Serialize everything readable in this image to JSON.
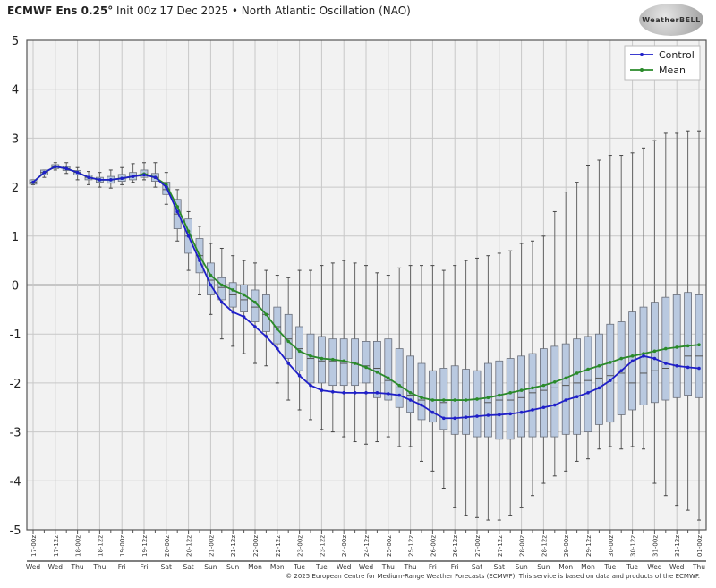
{
  "header": {
    "title_bold": "ECMWF Ens 0.25°",
    "title_rest": " Init 00z 17 Dec 2025 • North Atlantic Oscillation (NAO)"
  },
  "logo": {
    "text": "WeatherBELL"
  },
  "footer": {
    "text": "© 2025 European Centre for Medium-Range Weather Forecasts (ECMWF). This service is based on data and products of the ECMWF."
  },
  "chart_data": {
    "type": "box+line",
    "title": "North Atlantic Oscillation (NAO)",
    "ylim": [
      -5,
      5
    ],
    "yticks": [
      5,
      4,
      3,
      2,
      1,
      0,
      -1,
      -2,
      -3,
      -4,
      -5
    ],
    "grid": true,
    "legend_position": "top-right",
    "step_hours": 6,
    "xtick_labels": [
      "17-00z",
      "17-12z",
      "18-00z",
      "18-12z",
      "19-00z",
      "19-12z",
      "20-00z",
      "20-12z",
      "21-00z",
      "21-12z",
      "22-00z",
      "22-12z",
      "23-00z",
      "23-12z",
      "24-00z",
      "24-12z",
      "25-00z",
      "25-12z",
      "26-00z",
      "26-12z",
      "27-00z",
      "27-12z",
      "28-00z",
      "28-12z",
      "29-00z",
      "29-12z",
      "30-00z",
      "30-12z",
      "31-00z",
      "31-12z",
      "01-00z"
    ],
    "xtick_days": [
      "Wed",
      "Wed",
      "Thu",
      "Thu",
      "Fri",
      "Fri",
      "Sat",
      "Sat",
      "Sun",
      "Sun",
      "Mon",
      "Mon",
      "Tue",
      "Tue",
      "Wed",
      "Wed",
      "Thu",
      "Thu",
      "Fri",
      "Fri",
      "Sat",
      "Sat",
      "Sun",
      "Sun",
      "Mon",
      "Mon",
      "Tue",
      "Tue",
      "Wed",
      "Wed",
      "Thu"
    ],
    "series": [
      {
        "name": "Control",
        "color": "#1f1fc8",
        "values": [
          2.1,
          2.3,
          2.42,
          2.38,
          2.3,
          2.2,
          2.15,
          2.15,
          2.18,
          2.22,
          2.25,
          2.2,
          2.0,
          1.5,
          1.0,
          0.5,
          0.0,
          -0.35,
          -0.55,
          -0.65,
          -0.85,
          -1.05,
          -1.3,
          -1.6,
          -1.85,
          -2.05,
          -2.15,
          -2.18,
          -2.2,
          -2.2,
          -2.2,
          -2.2,
          -2.22,
          -2.25,
          -2.35,
          -2.45,
          -2.6,
          -2.72,
          -2.72,
          -2.7,
          -2.68,
          -2.66,
          -2.65,
          -2.63,
          -2.6,
          -2.55,
          -2.5,
          -2.45,
          -2.35,
          -2.28,
          -2.2,
          -2.1,
          -1.95,
          -1.75,
          -1.55,
          -1.45,
          -1.5,
          -1.6,
          -1.65,
          -1.68,
          -1.7
        ]
      },
      {
        "name": "Mean",
        "color": "#2a8a2a",
        "values": [
          2.1,
          2.3,
          2.42,
          2.38,
          2.3,
          2.2,
          2.15,
          2.15,
          2.18,
          2.22,
          2.27,
          2.2,
          2.05,
          1.6,
          1.1,
          0.6,
          0.2,
          0.0,
          -0.1,
          -0.2,
          -0.35,
          -0.6,
          -0.9,
          -1.15,
          -1.35,
          -1.45,
          -1.5,
          -1.52,
          -1.55,
          -1.6,
          -1.68,
          -1.78,
          -1.9,
          -2.05,
          -2.2,
          -2.3,
          -2.35,
          -2.35,
          -2.35,
          -2.35,
          -2.33,
          -2.3,
          -2.25,
          -2.2,
          -2.15,
          -2.1,
          -2.05,
          -1.98,
          -1.9,
          -1.8,
          -1.72,
          -1.65,
          -1.58,
          -1.5,
          -1.45,
          -1.4,
          -1.35,
          -1.3,
          -1.27,
          -1.24,
          -1.22
        ]
      }
    ],
    "boxes": {
      "max": [
        2.15,
        2.35,
        2.5,
        2.5,
        2.4,
        2.32,
        2.3,
        2.35,
        2.4,
        2.48,
        2.5,
        2.5,
        2.3,
        1.95,
        1.5,
        1.2,
        0.85,
        0.75,
        0.6,
        0.5,
        0.45,
        0.3,
        0.2,
        0.15,
        0.3,
        0.3,
        0.4,
        0.45,
        0.5,
        0.45,
        0.4,
        0.25,
        0.2,
        0.35,
        0.4,
        0.4,
        0.4,
        0.3,
        0.4,
        0.5,
        0.55,
        0.6,
        0.65,
        0.7,
        0.85,
        0.9,
        1.0,
        1.5,
        1.9,
        2.1,
        2.45,
        2.55,
        2.65,
        2.65,
        2.7,
        2.8,
        2.95,
        3.1,
        3.1,
        3.15,
        3.15
      ],
      "q3": [
        2.15,
        2.35,
        2.46,
        2.42,
        2.34,
        2.25,
        2.2,
        2.22,
        2.26,
        2.3,
        2.35,
        2.28,
        2.1,
        1.75,
        1.35,
        0.95,
        0.45,
        0.15,
        0.05,
        0.0,
        -0.1,
        -0.2,
        -0.45,
        -0.6,
        -0.85,
        -1.0,
        -1.05,
        -1.1,
        -1.1,
        -1.1,
        -1.15,
        -1.15,
        -1.1,
        -1.3,
        -1.45,
        -1.6,
        -1.75,
        -1.7,
        -1.65,
        -1.72,
        -1.75,
        -1.6,
        -1.55,
        -1.5,
        -1.45,
        -1.4,
        -1.3,
        -1.25,
        -1.2,
        -1.1,
        -1.05,
        -1.0,
        -0.8,
        -0.75,
        -0.55,
        -0.45,
        -0.35,
        -0.25,
        -0.2,
        -0.15,
        -0.2
      ],
      "median": [
        2.1,
        2.3,
        2.42,
        2.38,
        2.3,
        2.2,
        2.15,
        2.15,
        2.18,
        2.22,
        2.27,
        2.2,
        1.95,
        1.45,
        1.0,
        0.6,
        0.1,
        -0.05,
        -0.2,
        -0.3,
        -0.45,
        -0.6,
        -0.85,
        -1.1,
        -1.3,
        -1.5,
        -1.55,
        -1.55,
        -1.6,
        -1.6,
        -1.65,
        -1.7,
        -1.95,
        -2.1,
        -2.25,
        -2.35,
        -2.35,
        -2.4,
        -2.45,
        -2.45,
        -2.45,
        -2.4,
        -2.35,
        -2.35,
        -2.3,
        -2.2,
        -2.15,
        -2.1,
        -2.05,
        -2.0,
        -1.95,
        -1.9,
        -1.85,
        -1.8,
        -2.0,
        -1.8,
        -1.75,
        -1.7,
        -1.65,
        -1.45,
        -1.45
      ],
      "q1": [
        2.06,
        2.25,
        2.38,
        2.34,
        2.25,
        2.15,
        2.1,
        2.08,
        2.12,
        2.15,
        2.2,
        2.12,
        1.85,
        1.15,
        0.65,
        0.25,
        -0.2,
        -0.3,
        -0.45,
        -0.55,
        -0.75,
        -0.95,
        -1.2,
        -1.5,
        -1.75,
        -2.0,
        -2.0,
        -2.05,
        -2.05,
        -2.05,
        -2.0,
        -2.3,
        -2.35,
        -2.5,
        -2.6,
        -2.75,
        -2.8,
        -2.95,
        -3.05,
        -3.05,
        -3.1,
        -3.1,
        -3.15,
        -3.15,
        -3.1,
        -3.1,
        -3.1,
        -3.1,
        -3.05,
        -3.05,
        -3.0,
        -2.85,
        -2.8,
        -2.65,
        -2.55,
        -2.45,
        -2.4,
        -2.35,
        -2.3,
        -2.25,
        -2.3
      ],
      "min": [
        2.05,
        2.2,
        2.35,
        2.28,
        2.15,
        2.05,
        2.0,
        1.98,
        2.05,
        2.1,
        2.15,
        2.0,
        1.65,
        0.9,
        0.3,
        -0.2,
        -0.6,
        -1.1,
        -1.25,
        -1.4,
        -1.6,
        -1.65,
        -2.0,
        -2.35,
        -2.55,
        -2.75,
        -2.95,
        -3.0,
        -3.1,
        -3.2,
        -3.25,
        -3.2,
        -3.1,
        -3.3,
        -3.3,
        -3.6,
        -3.8,
        -4.15,
        -4.55,
        -4.7,
        -4.75,
        -4.8,
        -4.8,
        -4.7,
        -4.55,
        -4.3,
        -4.05,
        -3.9,
        -3.8,
        -3.6,
        -3.55,
        -3.35,
        -3.3,
        -3.35,
        -3.3,
        -3.35,
        -4.05,
        -4.3,
        -4.5,
        -4.6,
        -4.8
      ]
    },
    "colors": {
      "box_fill": "#b9c9e0",
      "box_edge": "#6a6f7a",
      "grid": "#c8c8c8",
      "background": "#f2f2f2"
    }
  }
}
